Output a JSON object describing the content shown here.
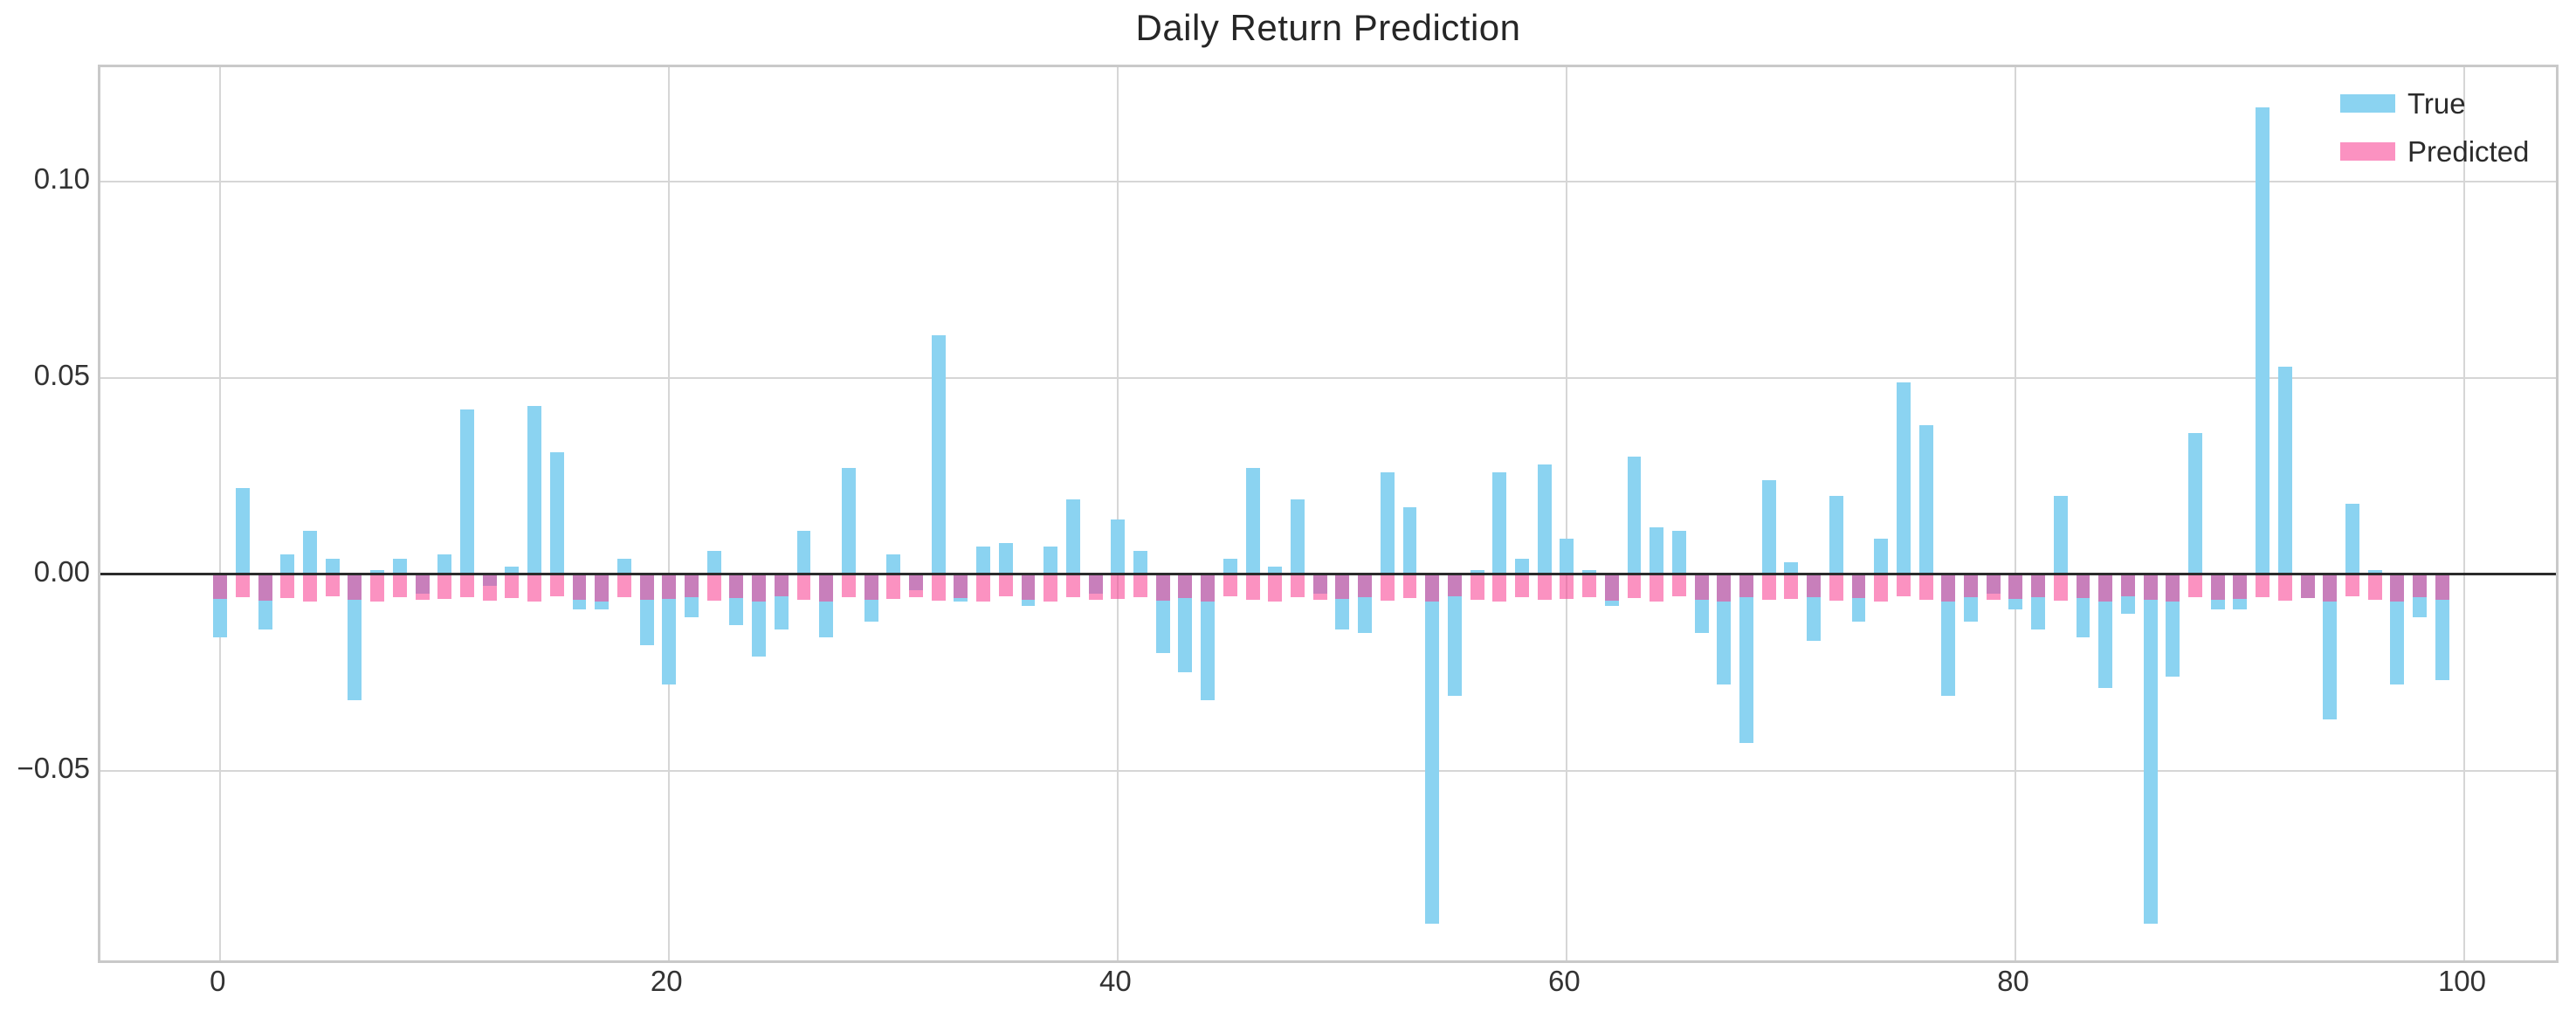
{
  "chart_data": {
    "type": "bar",
    "title": "Daily Return Prediction",
    "xlabel": "",
    "ylabel": "",
    "legend_position": "upper right",
    "grid": true,
    "xlim": [
      -5.34,
      104.3
    ],
    "ylim": [
      -0.0997,
      0.1292
    ],
    "bar_width_ratio": 0.62,
    "xticks": {
      "values": [
        0,
        20,
        40,
        60,
        80,
        100
      ],
      "labels": [
        "0",
        "20",
        "40",
        "60",
        "80",
        "100"
      ]
    },
    "yticks": {
      "values": [
        0.1,
        0.05,
        0.0,
        -0.05
      ],
      "labels": [
        "0.10",
        "0.05",
        "0.00",
        "−0.05"
      ]
    },
    "x": [
      0,
      1,
      2,
      3,
      4,
      5,
      6,
      7,
      8,
      9,
      10,
      11,
      12,
      13,
      14,
      15,
      16,
      17,
      18,
      19,
      20,
      21,
      22,
      23,
      24,
      25,
      26,
      27,
      28,
      29,
      30,
      31,
      32,
      33,
      34,
      35,
      36,
      37,
      38,
      39,
      40,
      41,
      42,
      43,
      44,
      45,
      46,
      47,
      48,
      49,
      50,
      51,
      52,
      53,
      54,
      55,
      56,
      57,
      58,
      59,
      60,
      61,
      62,
      63,
      64,
      65,
      66,
      67,
      68,
      69,
      70,
      71,
      72,
      73,
      74,
      75,
      76,
      77,
      78,
      79,
      80,
      81,
      82,
      83,
      84,
      85,
      86,
      87,
      88,
      89,
      90,
      91,
      92,
      93,
      94,
      95,
      96,
      97,
      98,
      99
    ],
    "series": [
      {
        "name": "True",
        "values": [
          -0.016,
          0.022,
          -0.014,
          0.005,
          0.011,
          0.004,
          -0.032,
          0.001,
          0.004,
          -0.005,
          0.005,
          0.042,
          -0.003,
          0.002,
          0.043,
          0.031,
          -0.009,
          -0.009,
          0.004,
          -0.018,
          -0.028,
          -0.011,
          0.006,
          -0.013,
          -0.021,
          -0.014,
          0.011,
          -0.016,
          0.027,
          -0.012,
          0.005,
          -0.004,
          0.061,
          -0.007,
          0.007,
          0.008,
          -0.008,
          0.007,
          0.019,
          -0.005,
          0.014,
          0.006,
          -0.02,
          -0.025,
          -0.032,
          0.004,
          0.027,
          0.002,
          0.019,
          -0.005,
          -0.014,
          -0.015,
          0.026,
          0.017,
          -0.089,
          -0.031,
          0.001,
          0.026,
          0.004,
          0.028,
          0.009,
          0.001,
          -0.008,
          0.03,
          0.012,
          0.011,
          -0.015,
          -0.028,
          -0.043,
          0.024,
          0.003,
          -0.017,
          0.02,
          -0.012,
          0.009,
          0.049,
          0.038,
          -0.031,
          -0.012,
          -0.005,
          -0.009,
          -0.014,
          0.02,
          -0.016,
          -0.029,
          -0.01,
          -0.089,
          -0.026,
          0.036,
          -0.009,
          -0.009,
          0.119,
          0.053,
          -0.006,
          -0.037,
          0.018,
          0.001,
          -0.028,
          -0.011,
          -0.027
        ]
      },
      {
        "name": "Predicted",
        "values": [
          -0.0063,
          -0.0058,
          -0.0067,
          -0.006,
          -0.007,
          -0.0055,
          -0.0064,
          -0.0069,
          -0.0059,
          -0.0066,
          -0.0063,
          -0.0058,
          -0.0067,
          -0.006,
          -0.007,
          -0.0055,
          -0.0064,
          -0.0069,
          -0.0059,
          -0.0066,
          -0.0063,
          -0.0058,
          -0.0067,
          -0.006,
          -0.007,
          -0.0055,
          -0.0064,
          -0.0069,
          -0.0059,
          -0.0066,
          -0.0063,
          -0.0058,
          -0.0067,
          -0.006,
          -0.007,
          -0.0055,
          -0.0064,
          -0.0069,
          -0.0059,
          -0.0066,
          -0.0063,
          -0.0058,
          -0.0067,
          -0.006,
          -0.007,
          -0.0055,
          -0.0064,
          -0.0069,
          -0.0059,
          -0.0066,
          -0.0063,
          -0.0058,
          -0.0067,
          -0.006,
          -0.007,
          -0.0055,
          -0.0064,
          -0.0069,
          -0.0059,
          -0.0066,
          -0.0063,
          -0.0058,
          -0.0067,
          -0.006,
          -0.007,
          -0.0055,
          -0.0064,
          -0.0069,
          -0.0059,
          -0.0066,
          -0.0063,
          -0.0058,
          -0.0067,
          -0.006,
          -0.007,
          -0.0055,
          -0.0064,
          -0.0069,
          -0.0059,
          -0.0066,
          -0.0063,
          -0.0058,
          -0.0067,
          -0.006,
          -0.007,
          -0.0055,
          -0.0064,
          -0.0069,
          -0.0059,
          -0.0066,
          -0.0063,
          -0.0058,
          -0.0067,
          -0.006,
          -0.007,
          -0.0055,
          -0.0064,
          -0.0069,
          -0.0059,
          -0.0066
        ]
      }
    ],
    "colors": {
      "true_fill": "#8BD3F1",
      "predicted_fill": "#F83C90",
      "predicted_alpha": 0.56,
      "predicted_legend_display": "#FB92C1",
      "overlap_display": "#C987C4",
      "grid": "#d6d6d6",
      "spine": "#c9c9c9",
      "zero_line": "#2b2b2b",
      "text": "#333333",
      "title_text": "#262626",
      "background": "#ffffff"
    }
  }
}
